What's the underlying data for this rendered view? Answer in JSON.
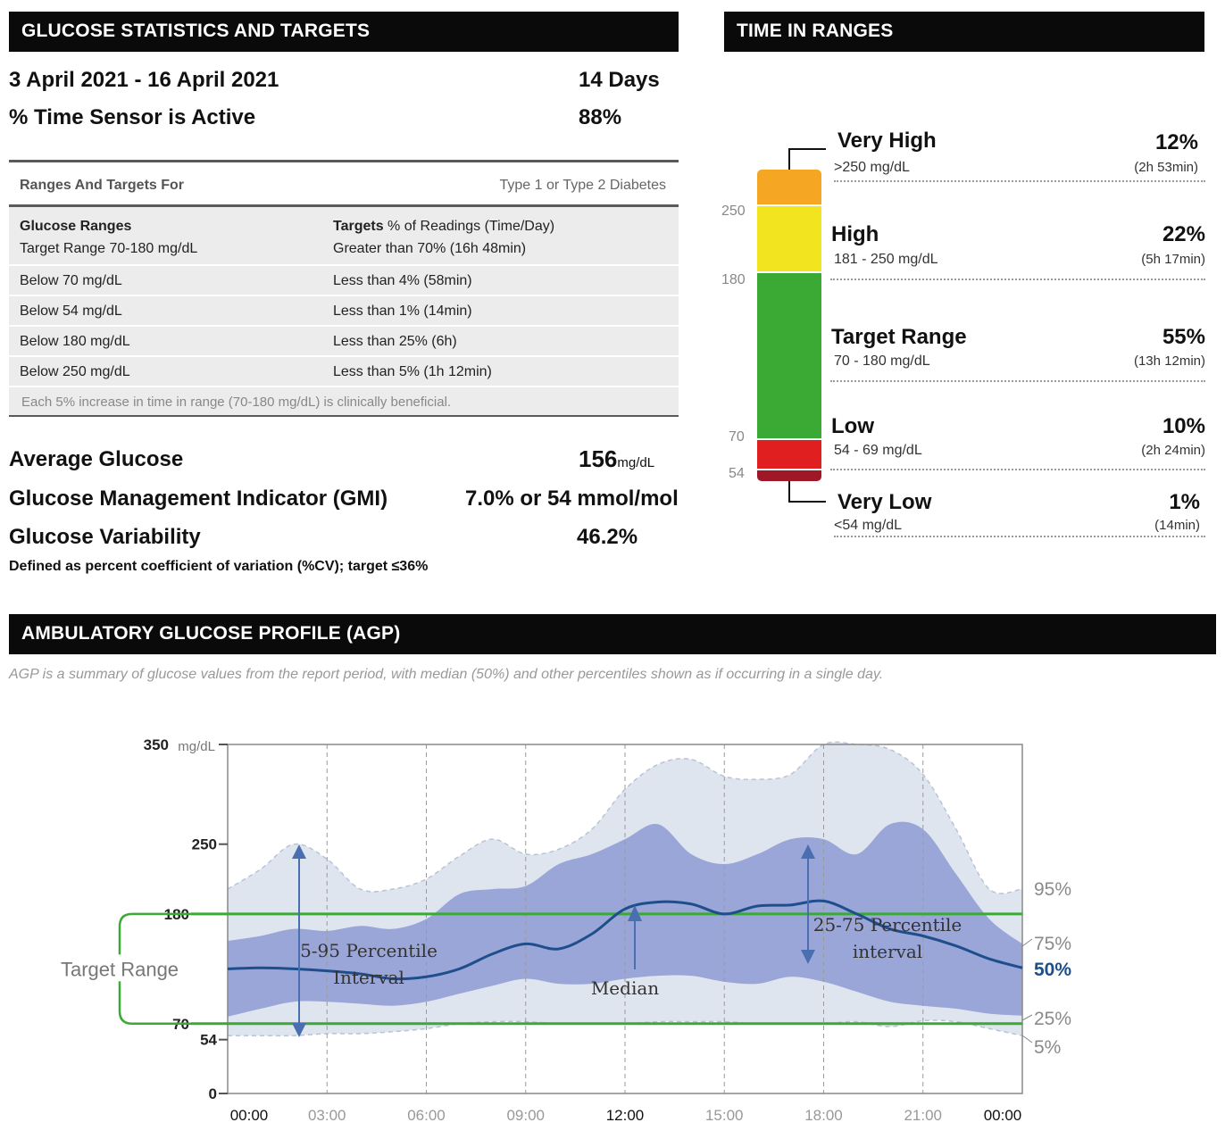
{
  "stats": {
    "header": "GLUCOSE STATISTICS AND TARGETS",
    "date_range": "3 April 2021 - 16 April 2021",
    "days": "14 Days",
    "sensor_label": "% Time Sensor is Active",
    "sensor_value": "88%",
    "table": {
      "title": "Ranges And Targets For",
      "title_right": "Type 1 or Type 2 Diabetes",
      "col1_header": "Glucose Ranges",
      "col2_header_bold": "Targets",
      "col2_header_rest": " % of Readings (Time/Day)",
      "rows": [
        {
          "range": "Target Range 70-180 mg/dL",
          "target": "Greater than 70% (16h 48min)"
        },
        {
          "range": "Below 70 mg/dL",
          "target": "Less than 4% (58min)"
        },
        {
          "range": "Below 54 mg/dL",
          "target": "Less than 1% (14min)"
        },
        {
          "range": "Below 180 mg/dL",
          "target": "Less than 25% (6h)"
        },
        {
          "range": "Below 250 mg/dL",
          "target": "Less than 5% (1h 12min)"
        }
      ],
      "footnote": "Each 5% increase in time in range (70-180 mg/dL) is clinically beneficial."
    },
    "avg_label": "Average Glucose",
    "avg_value": "156",
    "avg_unit": "mg/dL",
    "gmi_label": "Glucose Management Indicator (GMI)",
    "gmi_value": "7.0% or 54 mmol/mol",
    "var_label": "Glucose Variability",
    "var_value": "46.2%",
    "var_note": "Defined as percent coefficient of variation (%CV); target ≤36%"
  },
  "tir": {
    "header": "TIME IN RANGES",
    "ticks": [
      "250",
      "180",
      "70",
      "54"
    ],
    "colors": {
      "very_high": "#f5a623",
      "high": "#f2e41e",
      "target": "#3aaa35",
      "low": "#e02020",
      "very_low": "#a01828"
    },
    "items": [
      {
        "label": "Very High",
        "range": ">250 mg/dL",
        "pct": "12%",
        "dur": "(2h 53min)"
      },
      {
        "label": "High",
        "range": "181 - 250 mg/dL",
        "pct": "22%",
        "dur": "(5h 17min)"
      },
      {
        "label": "Target Range",
        "range": "70 - 180 mg/dL",
        "pct": "55%",
        "dur": "(13h 12min)"
      },
      {
        "label": "Low",
        "range": "54 - 69 mg/dL",
        "pct": "10%",
        "dur": "(2h 24min)"
      },
      {
        "label": "Very Low",
        "range": "<54 mg/dL",
        "pct": "1%",
        "dur": "(14min)"
      }
    ],
    "fractions": [
      0.12,
      0.22,
      0.55,
      0.1,
      0.01
    ]
  },
  "agp": {
    "header": "AMBULATORY GLUCOSE PROFILE (AGP)",
    "subtitle": "AGP is a summary of glucose values from the report period, with median (50%) and other percentiles shown as if occurring in a single day.",
    "target_range_label": "Target Range",
    "y_unit": "mg/dL",
    "annotations": {
      "p5_95_line1": "5-95 Percentile",
      "p5_95_line2": "Interval",
      "median": "Median",
      "p25_75_line1": "25-75 Percentile",
      "p25_75_line2": "interval"
    }
  },
  "chart_data": {
    "type": "area",
    "title": "AMBULATORY GLUCOSE PROFILE (AGP)",
    "xlabel": "",
    "ylabel": "mg/dL",
    "x_ticks": [
      "00:00",
      "03:00",
      "06:00",
      "09:00",
      "12:00",
      "15:00",
      "18:00",
      "21:00",
      "00:00"
    ],
    "y_ticks": [
      0,
      54,
      70,
      180,
      250,
      350
    ],
    "ylim": [
      0,
      350
    ],
    "xlim": [
      0,
      24
    ],
    "target_lines": [
      70,
      180
    ],
    "x": [
      0,
      1,
      2,
      3,
      4,
      5,
      6,
      7,
      8,
      9,
      10,
      11,
      12,
      13,
      14,
      15,
      16,
      17,
      18,
      19,
      20,
      21,
      22,
      23,
      24
    ],
    "series": [
      {
        "name": "95%",
        "values": [
          205,
          225,
          250,
          235,
          205,
          205,
          215,
          238,
          255,
          240,
          245,
          265,
          305,
          330,
          335,
          318,
          315,
          320,
          350,
          350,
          345,
          320,
          265,
          205,
          205
        ]
      },
      {
        "name": "75%",
        "values": [
          153,
          158,
          165,
          163,
          168,
          165,
          175,
          200,
          205,
          208,
          230,
          240,
          255,
          270,
          240,
          230,
          240,
          255,
          255,
          240,
          270,
          265,
          220,
          175,
          150
        ]
      },
      {
        "name": "50%",
        "values": [
          125,
          126,
          125,
          123,
          120,
          115,
          117,
          125,
          140,
          150,
          145,
          160,
          185,
          192,
          190,
          180,
          188,
          189,
          193,
          180,
          165,
          158,
          148,
          135,
          126
        ]
      },
      {
        "name": "25%",
        "values": [
          77,
          85,
          92,
          92,
          90,
          88,
          92,
          100,
          108,
          115,
          110,
          110,
          115,
          118,
          118,
          112,
          110,
          117,
          112,
          102,
          92,
          88,
          85,
          80,
          78
        ]
      },
      {
        "name": "5%",
        "values": [
          58,
          58,
          58,
          60,
          60,
          62,
          65,
          70,
          72,
          72,
          70,
          70,
          70,
          72,
          72,
          72,
          70,
          70,
          70,
          72,
          67,
          73,
          72,
          65,
          58
        ]
      }
    ],
    "percentile_labels": [
      "95%",
      "75%",
      "50%",
      "25%",
      "5%"
    ],
    "colors": {
      "outer_band": "#dfe5ef",
      "inner_band": "#9aa6d8",
      "median": "#1f4e8c",
      "target": "#3aaa35",
      "arrow": "#4a6fb0"
    },
    "grid": true
  }
}
